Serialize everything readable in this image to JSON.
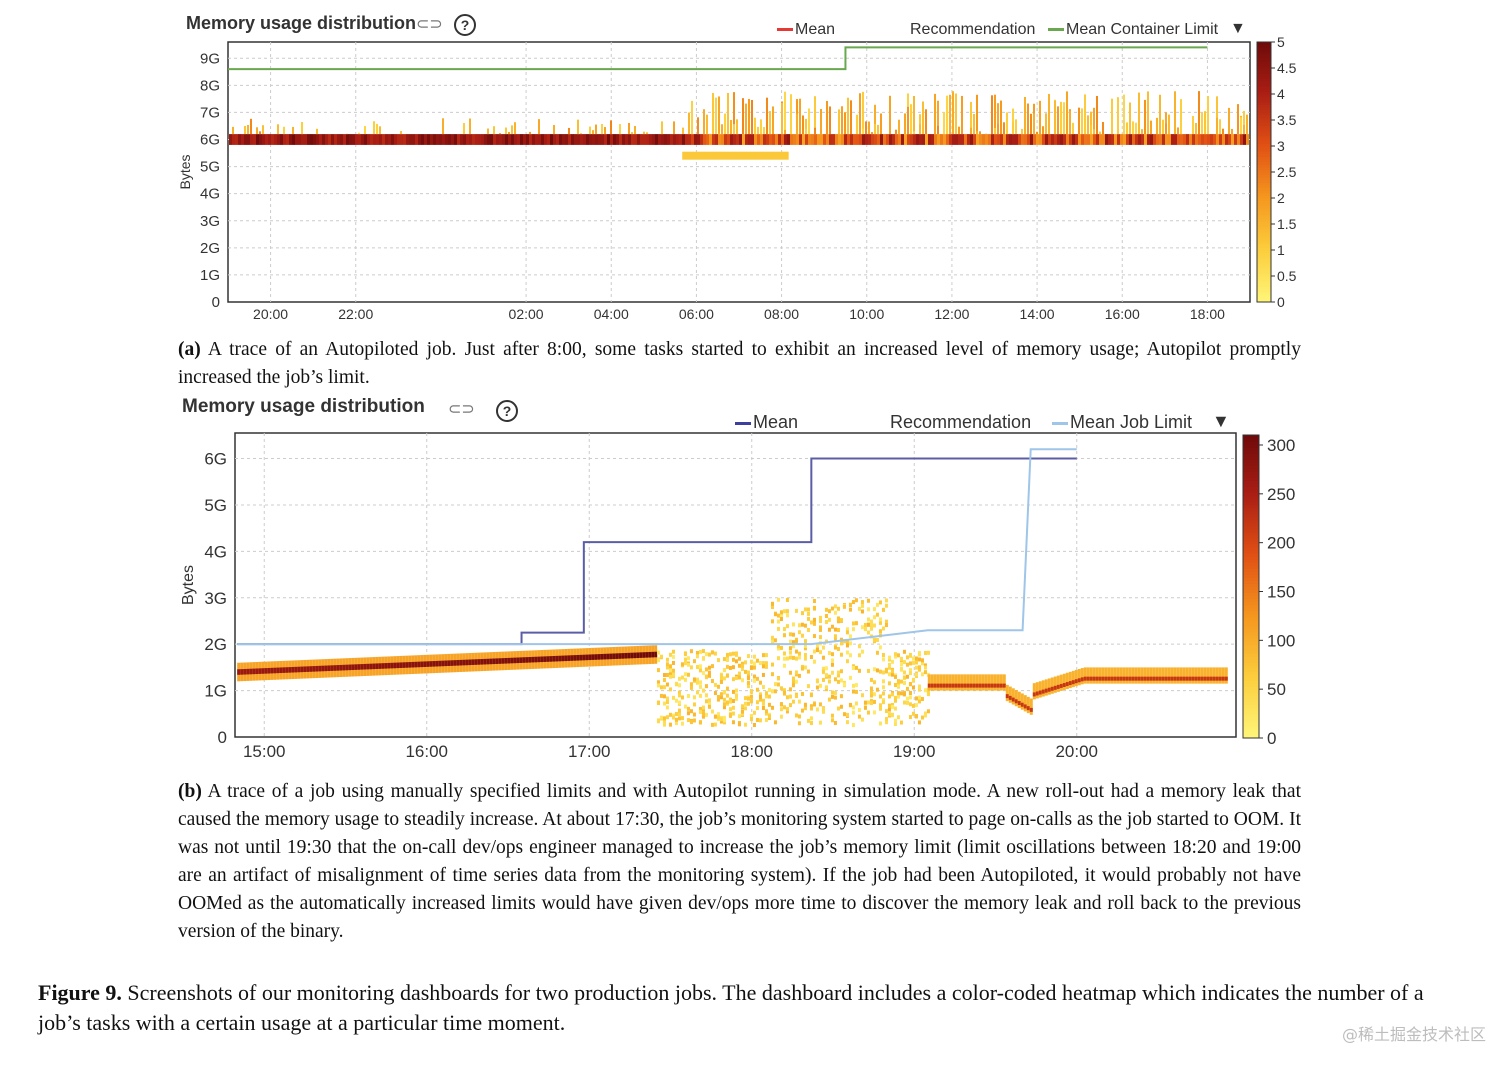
{
  "chart_data": [
    {
      "type": "heatmap",
      "title": "Memory usage distribution",
      "ylabel": "Bytes",
      "y_ticks": [
        "0",
        "1G",
        "2G",
        "3G",
        "4G",
        "5G",
        "6G",
        "7G",
        "8G",
        "9G"
      ],
      "x_ticks": [
        "20:00",
        "22:00",
        "02:00",
        "04:00",
        "06:00",
        "08:00",
        "10:00",
        "12:00",
        "14:00",
        "16:00",
        "18:00"
      ],
      "legend": [
        "Mean",
        "Recommendation",
        "Mean Container Limit"
      ],
      "colorbar": {
        "ticks": [
          "5",
          "4.5",
          "4",
          "3.5",
          "3",
          "2.5",
          "2",
          "1.5",
          "1",
          "0.5",
          "0"
        ],
        "range": [
          0,
          5
        ]
      },
      "series": [
        {
          "name": "Mean Container Limit",
          "x": [
            "19:00",
            "09:30",
            "09:30",
            "18:00"
          ],
          "values": [
            8.6,
            8.6,
            9.4,
            9.4
          ],
          "color": "#6aa84f"
        }
      ],
      "heat_band": {
        "center": 6.0,
        "description_values": [
          5.9,
          6.1
        ]
      }
    },
    {
      "type": "heatmap",
      "title": "Memory usage distribution",
      "ylabel": "Bytes",
      "y_ticks": [
        "0",
        "1G",
        "2G",
        "3G",
        "4G",
        "5G",
        "6G"
      ],
      "x_ticks": [
        "15:00",
        "16:00",
        "17:00",
        "18:00",
        "19:00",
        "20:00"
      ],
      "legend": [
        "Mean",
        "Recommendation",
        "Mean Job Limit"
      ],
      "colorbar": {
        "ticks": [
          "300",
          "250",
          "200",
          "150",
          "100",
          "50",
          "0"
        ],
        "range": [
          0,
          300
        ]
      },
      "series": [
        {
          "name": "Recommendation",
          "x": [
            "14:50",
            "16:35",
            "16:35",
            "16:58",
            "16:58",
            "18:22",
            "18:22",
            "20:00"
          ],
          "values": [
            2.0,
            2.0,
            2.25,
            2.25,
            4.2,
            4.2,
            6.0,
            6.0
          ],
          "color": "#5b5ea6"
        },
        {
          "name": "Mean Job Limit",
          "x": [
            "14:50",
            "18:22",
            "19:05",
            "19:40",
            "19:43",
            "20:00"
          ],
          "values": [
            2.0,
            2.0,
            2.3,
            2.3,
            6.2,
            6.2
          ],
          "color": "#9fc5e8"
        }
      ]
    }
  ],
  "panel_a": {
    "title": "Memory usage distribution",
    "legend_mean": "Mean",
    "legend_rec": "Recommendation",
    "legend_limit": "Mean Container Limit",
    "dropdown": "▼",
    "link_icon": "⊂⊃",
    "help_icon": "?"
  },
  "panel_b": {
    "title": "Memory usage distribution",
    "legend_mean": "Mean",
    "legend_rec": "Recommendation",
    "legend_limit": "Mean Job Limit",
    "dropdown": "▼",
    "link_icon": "⊂⊃",
    "help_icon": "?"
  },
  "caption_a": {
    "label": "(a)",
    "text": "A trace of an Autopiloted job. Just after 8:00, some tasks started to exhibit an increased level of memory usage; Autopilot promptly increased the job’s limit."
  },
  "caption_b": {
    "label": "(b)",
    "text": "A trace of a job using manually specified limits and with Autopilot running in simulation mode. A new roll-out had a memory leak that caused the memory usage to steadily increase. At about 17:30, the job’s monitoring system started to page on-calls as the job started to OOM. It was not until 19:30 that the on-call dev/ops engineer managed to increase the job’s memory limit (limit oscillations between 18:20 and 19:00 are an artifact of misalignment of time series data from the monitoring system). If the job had been Autopiloted, it would probably not have OOMed as the automatically increased limits would have given dev/ops more time to discover the memory leak and roll back to the previous version of the binary."
  },
  "figure": {
    "label": "Figure 9.",
    "text": "Screenshots of our monitoring dashboards for two production jobs. The dashboard includes a color-coded heatmap which indicates the number of a job’s tasks with a certain usage at a particular time moment."
  },
  "watermark": "@稀土掘金技术社区"
}
